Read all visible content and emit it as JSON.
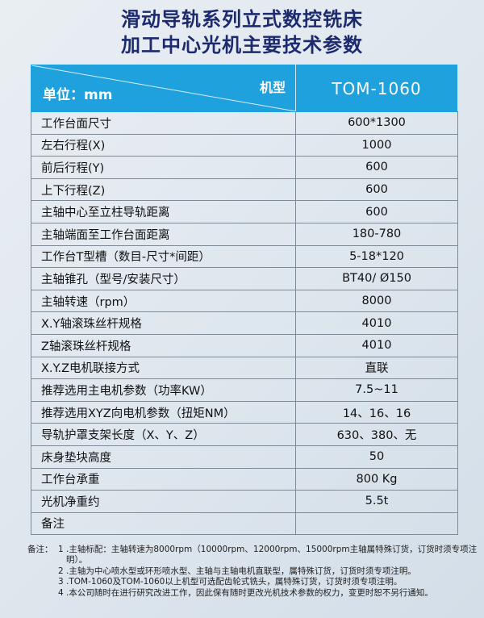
{
  "title_lines": [
    "滑动导轨系列立式数控铣床",
    "加工中心光机主要技术参数"
  ],
  "header": {
    "unit": "单位：mm",
    "model_label": "机型",
    "model": "TOM-1060"
  },
  "rows": [
    {
      "k": "工作台面尺寸",
      "v": "600*1300"
    },
    {
      "k": "左右行程(X)",
      "v": "1000"
    },
    {
      "k": "前后行程(Y)",
      "v": "600"
    },
    {
      "k": "上下行程(Z)",
      "v": "600"
    },
    {
      "k": "主轴中心至立柱导轨距离",
      "v": "600"
    },
    {
      "k": "主轴端面至工作台面距离",
      "v": "180-780"
    },
    {
      "k": "工作台T型槽（数目-尺寸*间距）",
      "v": "5-18*120"
    },
    {
      "k": "主轴锥孔（型号/安装尺寸）",
      "v": "BT40/ Ø150"
    },
    {
      "k": "主轴转速（rpm）",
      "v": "8000"
    },
    {
      "k": "X.Y轴滚珠丝杆规格",
      "v": "4010"
    },
    {
      "k": "Z轴滚珠丝杆规格",
      "v": "4010"
    },
    {
      "k": "X.Y.Z电机联接方式",
      "v": "直联"
    },
    {
      "k": "推荐选用主电机参数（功率KW）",
      "v": "7.5~11"
    },
    {
      "k": "推荐选用XYZ向电机参数（扭矩NM）",
      "v": "14、16、16"
    },
    {
      "k": "导轨护罩支架长度（X、Y、Z）",
      "v": "630、380、无"
    },
    {
      "k": "床身垫块高度",
      "v": "50"
    },
    {
      "k": "工作台承重",
      "v": "800 Kg"
    },
    {
      "k": "光机净重约",
      "v": "5.5t"
    },
    {
      "k": "备注",
      "v": ""
    }
  ],
  "notes": {
    "label": "备注：",
    "items": [
      "1 .主轴标配：主轴转速为8000rpm（10000rpm、12000rpm、15000rpm主轴属特殊订货，订货时须专项注明）。",
      "2 .主轴为中心喷水型或环形喷水型、主轴与主轴电机直联型，属特殊订货，订货时须专项注明。",
      "3 .TOM-1060及TOM-1060以上机型可选配齿轮式铣头，属特殊订货，订货时须专项注明。",
      "4 .本公司随时在进行研究改进工作，因此保有随时更改光机技术参数的权力，变更时恕不另行通知。"
    ]
  },
  "colors": {
    "header_bg": "#1ea1dc",
    "title": "#1d2a6e"
  }
}
